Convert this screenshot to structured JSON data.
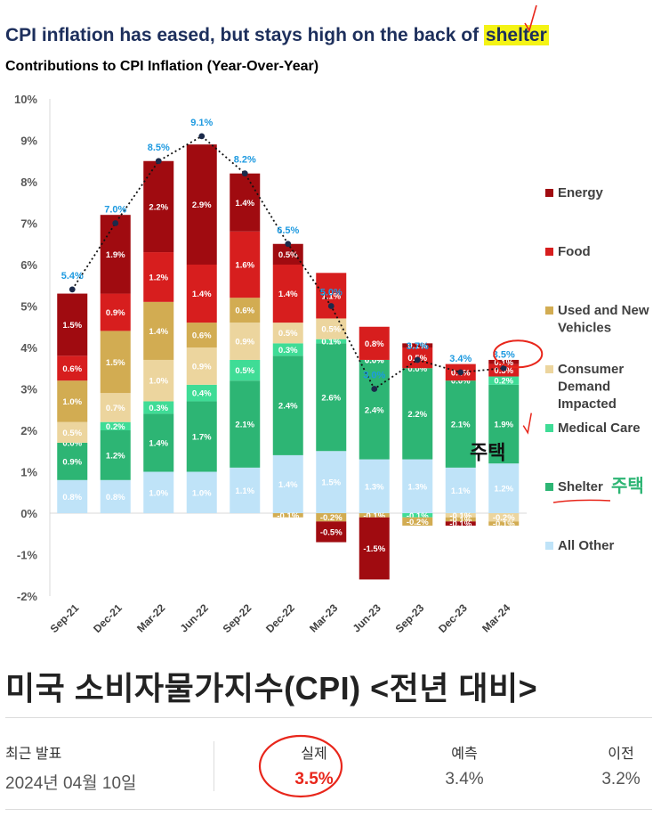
{
  "headline": {
    "prefix": "CPI inflation has eased, but stays high on the back of ",
    "highlight": "shelter"
  },
  "chart_subtitle": "Contributions to CPI Inflation (Year-Over-Year)",
  "chart_data": {
    "type": "bar",
    "stacked": true,
    "categories": [
      "Sep-21",
      "Dec-21",
      "Mar-22",
      "Jun-22",
      "Sep-22",
      "Dec-22",
      "Mar-23",
      "Jun-23",
      "Sep-23",
      "Dec-23",
      "Mar-24"
    ],
    "y_ticks": [
      "10%",
      "9%",
      "8%",
      "7%",
      "6%",
      "5%",
      "4%",
      "3%",
      "2%",
      "1%",
      "0%",
      "-1%",
      "-2%"
    ],
    "ylim": [
      -2,
      10
    ],
    "legend_position": "right",
    "series": [
      {
        "name": "All Other",
        "color": "#bfe3f8",
        "values": [
          0.8,
          0.8,
          1.0,
          1.0,
          1.1,
          1.4,
          1.5,
          1.3,
          1.3,
          1.1,
          1.2
        ],
        "labels": [
          "0.8%",
          "0.8%",
          "1.0%",
          "1.0%",
          "1.1%",
          "1.4%",
          "1.5%",
          "1.3%",
          "1.3%",
          "1.1%",
          "1.2%"
        ]
      },
      {
        "name": "Shelter",
        "color": "#2db574",
        "values": [
          0.9,
          1.2,
          1.4,
          1.7,
          2.1,
          2.4,
          2.6,
          2.4,
          2.2,
          2.1,
          1.9
        ],
        "labels": [
          "0.9%",
          "1.2%",
          "1.4%",
          "1.7%",
          "2.1%",
          "2.4%",
          "2.6%",
          "2.4%",
          "2.2%",
          "2.1%",
          "1.9%"
        ]
      },
      {
        "name": "Medical Care",
        "color": "#3fdc96",
        "values": [
          0.0,
          0.2,
          0.3,
          0.4,
          0.5,
          0.3,
          0.1,
          0.0,
          -0.1,
          0.0,
          0.2
        ],
        "labels": [
          "0.0%",
          "0.2%",
          "0.3%",
          "0.4%",
          "0.5%",
          "0.3%",
          "0.1%",
          "0.0%",
          "-0.1%",
          "0.0%",
          "0.2%"
        ]
      },
      {
        "name": "Consumer Demand Impacted",
        "color": "#ecd59e",
        "values": [
          0.5,
          0.7,
          1.0,
          0.9,
          0.9,
          0.5,
          0.5,
          0.0,
          0.0,
          -0.1,
          -0.2
        ],
        "labels": [
          "0.5%",
          "0.7%",
          "1.0%",
          "0.9%",
          "0.9%",
          "0.5%",
          "0.5%",
          "0.0%",
          "0.0%",
          "-0.1%",
          "-0.2%"
        ]
      },
      {
        "name": "Used and New Vehicles",
        "color": "#d2ac52",
        "values": [
          1.0,
          1.5,
          1.4,
          0.6,
          0.6,
          -0.1,
          -0.2,
          -0.1,
          -0.2,
          -0.1,
          -0.1
        ],
        "labels": [
          "1.0%",
          "1.5%",
          "1.4%",
          "0.6%",
          "0.6%",
          "-0.1%",
          "-0.2%",
          "-0.1%",
          "-0.2%",
          "-0.1%",
          "-0.1%"
        ]
      },
      {
        "name": "Food",
        "color": "#d71e1e",
        "values": [
          0.6,
          0.9,
          1.2,
          1.4,
          1.6,
          1.4,
          1.1,
          0.8,
          0.5,
          0.4,
          0.3
        ],
        "labels": [
          "0.6%",
          "0.9%",
          "1.2%",
          "1.4%",
          "1.6%",
          "1.4%",
          "1.1%",
          "0.8%",
          "0.5%",
          "0.4%",
          "0.3%"
        ]
      },
      {
        "name": "Energy",
        "color": "#a00b10",
        "values": [
          1.5,
          1.9,
          2.2,
          2.9,
          1.4,
          0.5,
          -0.5,
          -1.5,
          0.1,
          -0.1,
          0.1
        ],
        "labels": [
          "1.5%",
          "1.9%",
          "2.2%",
          "2.9%",
          "1.4%",
          "0.5%",
          "-0.5%",
          "-1.5%",
          "0.1%",
          "-0.1%",
          "0.1%"
        ]
      }
    ],
    "totals": [
      5.4,
      7.0,
      8.5,
      9.1,
      8.2,
      6.5,
      5.0,
      3.0,
      3.7,
      3.4,
      3.5
    ],
    "total_labels": [
      "5.4%",
      "7.0%",
      "8.5%",
      "9.1%",
      "8.2%",
      "6.5%",
      "5.0%",
      "3.0%",
      "3.7%",
      "3.4%",
      "3.5%"
    ],
    "legend_order": [
      "Energy",
      "Food",
      "Used and New Vehicles",
      "Consumer Demand Impacted",
      "Medical Care",
      "Shelter",
      "All Other"
    ]
  },
  "annotations": {
    "shelter_korean": "주택",
    "bar_korean": "주택"
  },
  "colors": {
    "headline": "#1d2f5c",
    "highlight": "#f4f315",
    "total_label": "#1e9ae0",
    "annotation_red": "#e8261b"
  },
  "summary": {
    "title": "미국 소비자물가지수(CPI) <전년 대비>",
    "latest_label": "최근 발표",
    "latest_date": "2024년 04월 10일",
    "actual_label": "실제",
    "actual_value": "3.5%",
    "forecast_label": "예측",
    "forecast_value": "3.4%",
    "previous_label": "이전",
    "previous_value": "3.2%"
  }
}
